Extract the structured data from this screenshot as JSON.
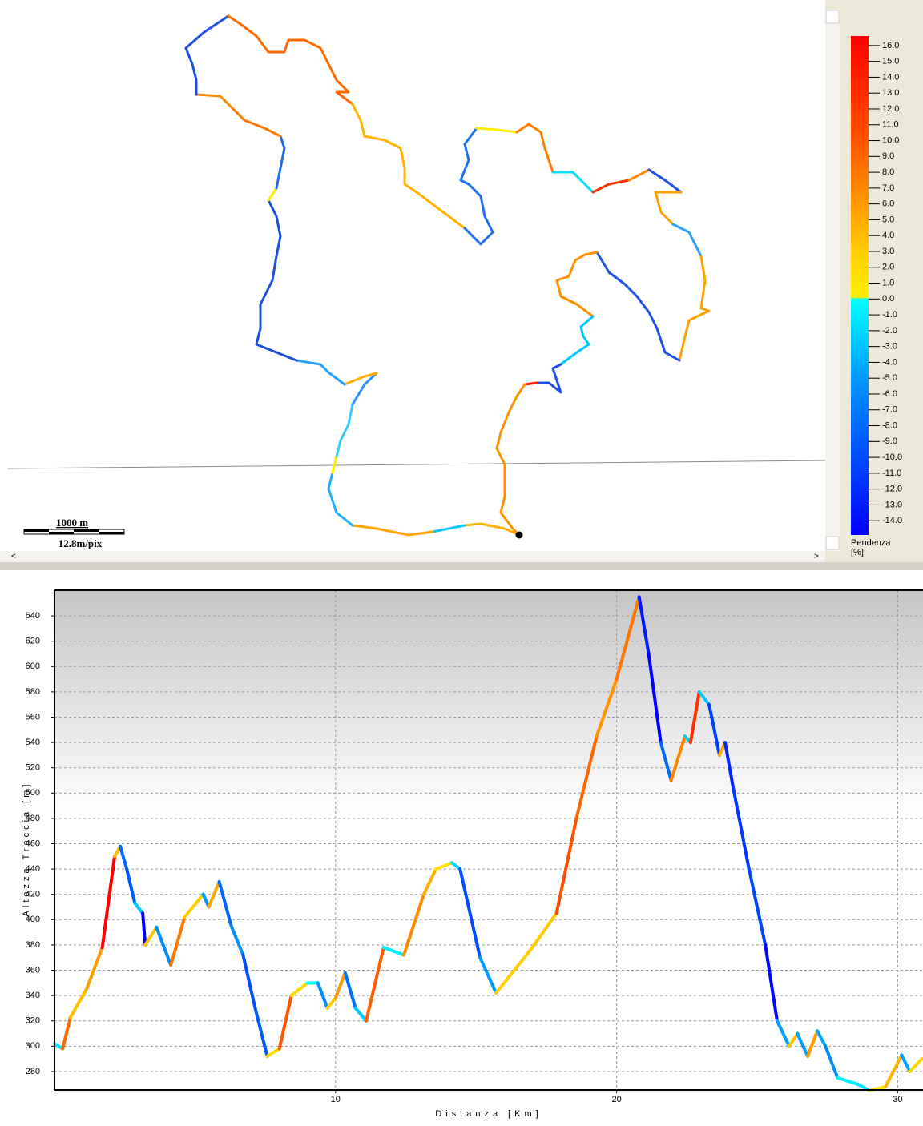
{
  "map": {
    "scale_distance": "1000 m",
    "scale_resolution": "12.8m/pix"
  },
  "legend": {
    "title": "Pendenza",
    "unit": "[%]",
    "clim": [
      -14.9,
      16.6
    ],
    "ticks": [
      {
        "value": 16,
        "label": "16.0"
      },
      {
        "value": 15,
        "label": "15.0"
      },
      {
        "value": 14,
        "label": "14.0"
      },
      {
        "value": 13,
        "label": "13.0"
      },
      {
        "value": 12,
        "label": "12.0"
      },
      {
        "value": 11,
        "label": "11.0"
      },
      {
        "value": 10,
        "label": "10.0"
      },
      {
        "value": 9,
        "label": "9.0"
      },
      {
        "value": 8,
        "label": "8.0"
      },
      {
        "value": 7,
        "label": "7.0"
      },
      {
        "value": 6,
        "label": "6.0"
      },
      {
        "value": 5,
        "label": "5.0"
      },
      {
        "value": 4,
        "label": "4.0"
      },
      {
        "value": 3,
        "label": "3.0"
      },
      {
        "value": 2,
        "label": "2.0"
      },
      {
        "value": 1,
        "label": "1.0"
      },
      {
        "value": 0,
        "label": "0.0"
      },
      {
        "value": -1,
        "label": "-1.0"
      },
      {
        "value": -2,
        "label": "-2.0"
      },
      {
        "value": -3,
        "label": "-3.0"
      },
      {
        "value": -4,
        "label": "-4.0"
      },
      {
        "value": -5,
        "label": "-5.0"
      },
      {
        "value": -6,
        "label": "-6.0"
      },
      {
        "value": -7,
        "label": "-7.0"
      },
      {
        "value": -8,
        "label": "-8.0"
      },
      {
        "value": -9,
        "label": "-9.0"
      },
      {
        "value": -10,
        "label": "-10.0"
      },
      {
        "value": -11,
        "label": "-11.0"
      },
      {
        "value": -12,
        "label": "-12.0"
      },
      {
        "value": -13,
        "label": "-13.0"
      },
      {
        "value": -14,
        "label": "-14.0"
      }
    ],
    "colorscale": [
      {
        "value": 16.6,
        "color": "#ff0000"
      },
      {
        "value": 10,
        "color": "#ff5500"
      },
      {
        "value": 6,
        "color": "#ff9900"
      },
      {
        "value": 3,
        "color": "#ffcc00"
      },
      {
        "value": 0.1,
        "color": "#ffee00"
      },
      {
        "value": 0,
        "color": "#00ffff"
      },
      {
        "value": -5,
        "color": "#0099ff"
      },
      {
        "value": -14.9,
        "color": "#0000ff"
      }
    ]
  },
  "chart_data": {
    "type": "line",
    "ylabel": "Altezza Traccia [m]",
    "xlabel": "Distanza [Km]",
    "x": [
      0,
      0.29,
      0.57,
      1.14,
      1.7,
      2.14,
      2.34,
      2.57,
      2.86,
      3.14,
      3.23,
      3.63,
      4.14,
      4.63,
      5.29,
      5.49,
      5.86,
      6.29,
      6.71,
      7.14,
      7.57,
      8.0,
      8.43,
      9.0,
      9.37,
      9.71,
      10.0,
      10.34,
      10.71,
      11.09,
      11.71,
      12.43,
      13.14,
      13.57,
      14.14,
      14.43,
      15.14,
      15.71,
      16.29,
      17.0,
      17.86,
      18.57,
      19.29,
      20.0,
      20.8,
      21.14,
      21.57,
      21.94,
      22.43,
      22.63,
      22.94,
      23.29,
      23.66,
      23.86,
      24.14,
      24.71,
      25.29,
      25.71,
      26.14,
      26.43,
      26.8,
      27.14,
      27.43,
      27.86,
      28.57,
      29.0,
      29.57,
      30.14,
      30.43,
      30.86
    ],
    "values": [
      302,
      298,
      323,
      345,
      378,
      450,
      458,
      440,
      413,
      405,
      380,
      394,
      364,
      402,
      420,
      410,
      430,
      395,
      372,
      330,
      292,
      298,
      340,
      350,
      350,
      330,
      338,
      358,
      330,
      320,
      378,
      372,
      420,
      440,
      445,
      440,
      370,
      342,
      358,
      378,
      405,
      480,
      545,
      590,
      655,
      610,
      540,
      510,
      545,
      540,
      580,
      570,
      530,
      540,
      505,
      440,
      380,
      320,
      300,
      310,
      292,
      312,
      300,
      275,
      270,
      265,
      268,
      293,
      280,
      290
    ],
    "xlim": [
      0,
      30.9
    ],
    "ylim": [
      265.4,
      660.3
    ],
    "xticks": [
      10,
      20,
      30
    ],
    "yticks": [
      280,
      300,
      320,
      340,
      360,
      380,
      400,
      420,
      440,
      460,
      480,
      500,
      520,
      540,
      560,
      580,
      600,
      620,
      640
    ],
    "grid": true
  }
}
